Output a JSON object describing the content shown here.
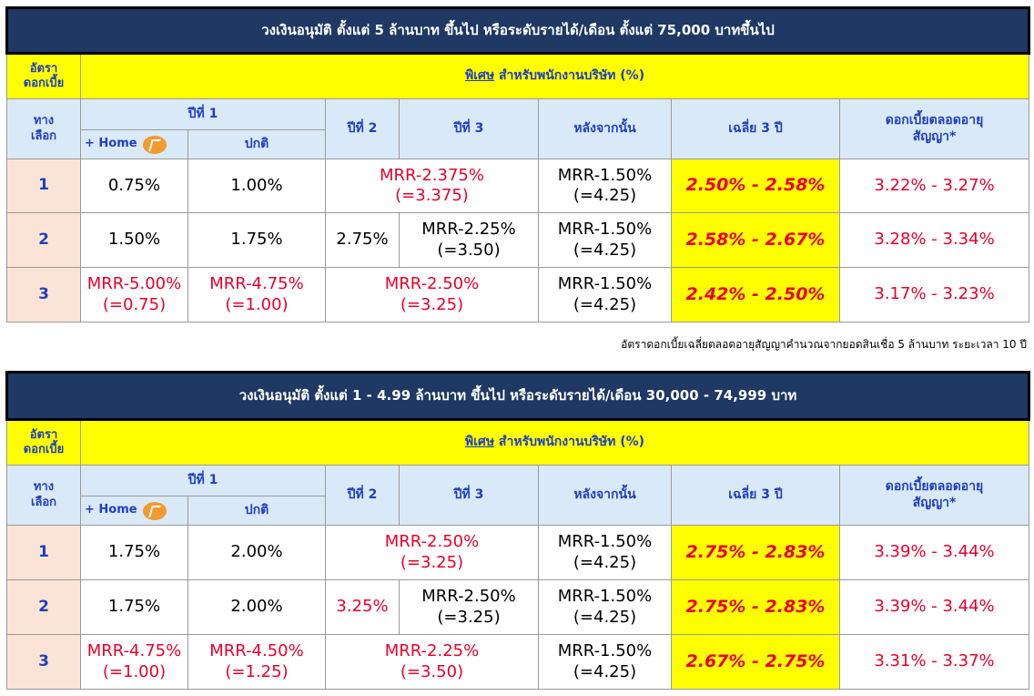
{
  "tables": [
    {
      "title": "วงเงินอนุมัติ ตั้งแต่ 5 ล้านบาท ขึ้นไป หรือระดับรายได้/เดือน ตั้งแต่ 75,000 บาทขึ้นไป",
      "rows": [
        {
          "option": "1",
          "year1_home": "0.75%",
          "year1_normal": "1.00%",
          "year2_3_merged": true,
          "year2_3_line1": "MRR-2.375%",
          "year2_3_line2": "(=3.375)",
          "after_line1": "MRR-1.50%",
          "after_line2": "(=4.25)",
          "avg3": "2.50% - 2.58%",
          "lifetime": "3.22% - 3.27%"
        },
        {
          "option": "2",
          "year1_home": "1.50%",
          "year1_normal": "1.75%",
          "year2_3_merged": false,
          "year2": "2.75%",
          "year3_line1": "MRR-2.25%",
          "year3_line2": "(=3.50)",
          "after_line1": "MRR-1.50%",
          "after_line2": "(=4.25)",
          "avg3": "2.58% - 2.67%",
          "lifetime": "3.28% - 3.34%"
        },
        {
          "option": "3",
          "year1_home_line1": "MRR-5.00%",
          "year1_home_line2": "(=0.75)",
          "year1_normal_line1": "MRR-4.75%",
          "year1_normal_line2": "(=1.00)",
          "year2_3_merged": true,
          "year2_3_line1": "MRR-2.50%",
          "year2_3_line2": "(=3.25)",
          "after_line1": "MRR-1.50%",
          "after_line2": "(=4.25)",
          "avg3": "2.42% - 2.50%",
          "lifetime": "3.17% - 3.23%"
        }
      ]
    },
    {
      "title": "วงเงินอนุมัติ ตั้งแต่ 1 - 4.99 ล้านบาท ขึ้นไป หรือระดับรายได้/เดือน 30,000 - 74,999 บาท",
      "rows": [
        {
          "option": "1",
          "year1_home": "1.75%",
          "year1_normal": "2.00%",
          "year2_3_line1": "MRR-2.50%",
          "year2_3_line2": "(=3.25)",
          "after_line1": "MRR-1.50%",
          "after_line2": "(=4.25)",
          "avg3": "2.75% - 2.83%",
          "lifetime": "3.39% - 3.44%"
        },
        {
          "option": "2",
          "year1_home": "1.75%",
          "year1_normal": "2.00%",
          "year2": "3.25%",
          "year3_line1": "MRR-2.50%",
          "year3_line2": "(=3.25)",
          "after_line1": "MRR-1.50%",
          "after_line2": "(=4.25)",
          "avg3": "2.75% - 2.83%",
          "lifetime": "3.39% - 3.44%"
        },
        {
          "option": "3",
          "year1_home_line1": "MRR-4.75%",
          "year1_home_line2": "(=1.00)",
          "year1_normal_line1": "MRR-4.50%",
          "year1_normal_line2": "(=1.25)",
          "year2_3_line1": "MRR-2.25%",
          "year2_3_line2": "(=3.50)",
          "after_line1": "MRR-1.50%",
          "after_line2": "(=4.25)",
          "avg3": "2.67% - 2.75%",
          "lifetime": "3.31% - 3.37%"
        }
      ]
    }
  ],
  "headers": {
    "rate_label_line1": "อัตรา",
    "rate_label_line2": "ดอกเบี้ย",
    "special": "พิเศษ",
    "special_suffix": " สำหรับพนักงานบริษัท (%)",
    "option_label_line1": "ทาง",
    "option_label_line2": "เลือก",
    "year1": "ปีที่ 1",
    "year2": "ปีที่ 2",
    "year3": "ปีที่ 3",
    "after": "หลังจากนั้น",
    "avg3": "เฉลี่ย 3 ปี",
    "lifetime_line1": "ดอกเบี้ยตลอดอายุ",
    "lifetime_line2": "สัญญา*",
    "home_text": "+ Home",
    "home_logo_text": "1st",
    "normal": "ปกติ"
  },
  "footnote": "อัตราดอกเบี้ยเฉลี่ยตลอดอายุสัญญาคำนวณจากยอดสินเชื่อ 5 ล้านบาท  ระยะเวลา 10 ปี",
  "colors": {
    "title_bg": "#1f3864",
    "highlight_yellow": "#ffff00",
    "header_blue": "#dae9f7",
    "option_bg": "#fbe4d5",
    "red_text": "#e8002a",
    "blue_text": "#1f3fbf"
  }
}
